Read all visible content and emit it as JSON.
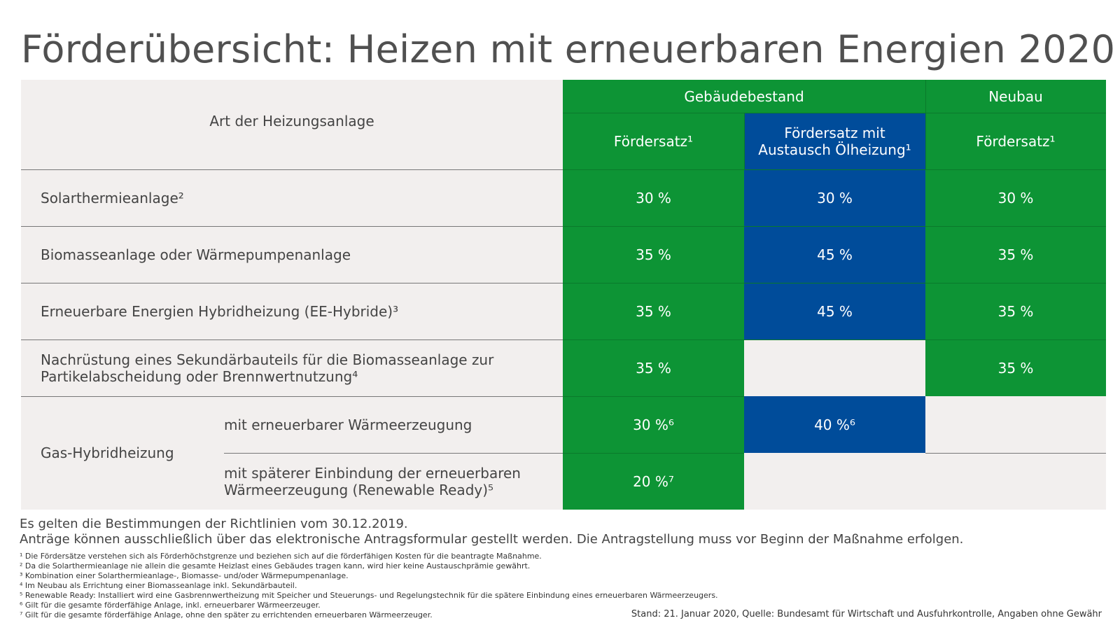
{
  "title": "Förderübersicht: Heizen mit erneuerbaren Energien 2020",
  "colors": {
    "green": "#0d9435",
    "blue": "#004c9a",
    "grey": "#f2efee"
  },
  "header": {
    "art": "Art der Heizungsanlage",
    "bestand": "Gebäudebestand",
    "neubau": "Neubau",
    "foerdersatz": "Fördersatz¹",
    "foerdersatz_oel_line1": "Fördersatz mit",
    "foerdersatz_oel_line2": "Austausch Ölheizung¹",
    "foerdersatz_neubau": "Fördersatz¹"
  },
  "rows": [
    {
      "label": "Solarthermieanlage²",
      "bestand": "30 %",
      "oel": "30 %",
      "neubau": "30 %"
    },
    {
      "label": "Biomasseanlage oder Wärmepumpenanlage",
      "bestand": "35 %",
      "oel": "45 %",
      "neubau": "35 %"
    },
    {
      "label": "Erneuerbare Energien Hybridheizung (EE-Hybride)³",
      "bestand": "35 %",
      "oel": "45 %",
      "neubau": "35 %"
    },
    {
      "label_line1": "Nachrüstung eines Sekundärbauteils für die Biomasseanlage zur",
      "label_line2": "Partikelabscheidung oder Brennwertnutzung⁴",
      "bestand": "35 %",
      "oel": "",
      "neubau": "35 %"
    }
  ],
  "gas": {
    "label": "Gas-Hybridheizung",
    "sub1": {
      "label": "mit erneuerbarer Wärmeerzeugung",
      "bestand": "30 %⁶",
      "oel": "40 %⁶"
    },
    "sub2": {
      "label_line1": "mit späterer Einbindung der erneuerbaren",
      "label_line2": "Wärmeerzeugung (Renewable Ready)⁵",
      "bestand": "20 %⁷"
    }
  },
  "notes": {
    "line1": "Es gelten die Bestimmungen der Richtlinien vom 30.12.2019.",
    "line2": "Anträge können ausschließlich über das elektronische Antragsformular gestellt werden. Die Antragstellung muss vor Beginn der Maßnahme erfolgen."
  },
  "footnotes": [
    "¹ Die Fördersätze verstehen sich als Förderhöchstgrenze und beziehen sich auf die förderfähigen Kosten für die beantragte Maßnahme.",
    "² Da die Solarthermieanlage nie allein die gesamte Heizlast eines Gebäudes tragen kann, wird hier keine Austauschprämie gewährt.",
    "³ Kombination einer Solarthermieanlage-, Biomasse- und/oder Wärmepumpenanlage.",
    "⁴ Im Neubau als Errichtung einer Biomasseanlage inkl. Sekundärbauteil.",
    "⁵ Renewable Ready: Installiert wird eine Gasbrennwertheizung mit Speicher und Steuerungs- und Regelungstechnik für die spätere Einbindung eines erneuerbaren Wärmeerzeugers.",
    "⁶ Gilt für die gesamte förderfähige Anlage, inkl. erneuerbarer Wärmeerzeuger.",
    "⁷ Gilt für die gesamte förderfähige Anlage, ohne den später zu errichtenden erneuerbaren Wärmeerzeuger."
  ],
  "source": "Stand: 21. Januar 2020, Quelle: Bundesamt für Wirtschaft und Ausfuhrkontrolle, Angaben ohne Gewähr"
}
